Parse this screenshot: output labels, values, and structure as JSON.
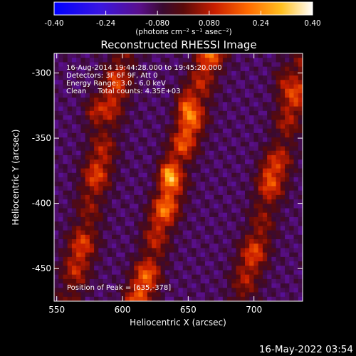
{
  "chart_data": {
    "type": "heatmap",
    "title": "Reconstructed RHESSI Image",
    "xlabel": "Heliocentric X (arcsec)",
    "ylabel": "Heliocentric Y (arcsec)",
    "xlim": [
      548,
      737
    ],
    "ylim": [
      -475,
      -285
    ],
    "x_ticks": [
      550,
      600,
      650,
      700
    ],
    "y_ticks": [
      -300,
      -350,
      -400,
      -450
    ],
    "colorbar": {
      "colormap": "red-temperature (blue-purple-red-orange-yellow-white)",
      "range": [
        -0.4,
        0.4
      ],
      "ticks": [
        "-0.40",
        "-0.24",
        "-0.080",
        "0.080",
        "0.24",
        "0.40"
      ],
      "unit_label": "(photons cm⁻² s⁻¹ asec⁻²)",
      "low_color": "#0000ff",
      "mid_color": "#5a0f8c",
      "high_color": "#ffffff"
    },
    "annotations": [
      "16-Aug-2014 19:44:28.000 to 19:45:20.000",
      "Detectors: 3F 6F 9F, Att 0",
      "Energy Range: 3.0 - 6.0 keV",
      "Clean     Total counts: 4.35E+03"
    ],
    "peak_label": "Position of Peak = [635,-378]",
    "peak": [
      635,
      -378
    ],
    "features": {
      "ridges": [
        {
          "x_at_top": 600,
          "x_at_bottom": 560,
          "amplitude": 0.22
        },
        {
          "x_at_top": 667,
          "x_at_bottom": 612,
          "amplitude": 0.28
        },
        {
          "x_at_top": 740,
          "x_at_bottom": 690,
          "amplitude": 0.22
        }
      ],
      "hot_spots": [
        {
          "x": 635,
          "y": -378,
          "value": 0.4
        },
        {
          "x": 648,
          "y": -323,
          "value": 0.32
        },
        {
          "x": 578,
          "y": -330,
          "value": 0.28
        },
        {
          "x": 722,
          "y": -305,
          "value": 0.25
        },
        {
          "x": 710,
          "y": -375,
          "value": 0.22
        }
      ],
      "background_value": -0.1
    }
  },
  "footer": {
    "timestamp": "16-May-2022 03:54"
  }
}
